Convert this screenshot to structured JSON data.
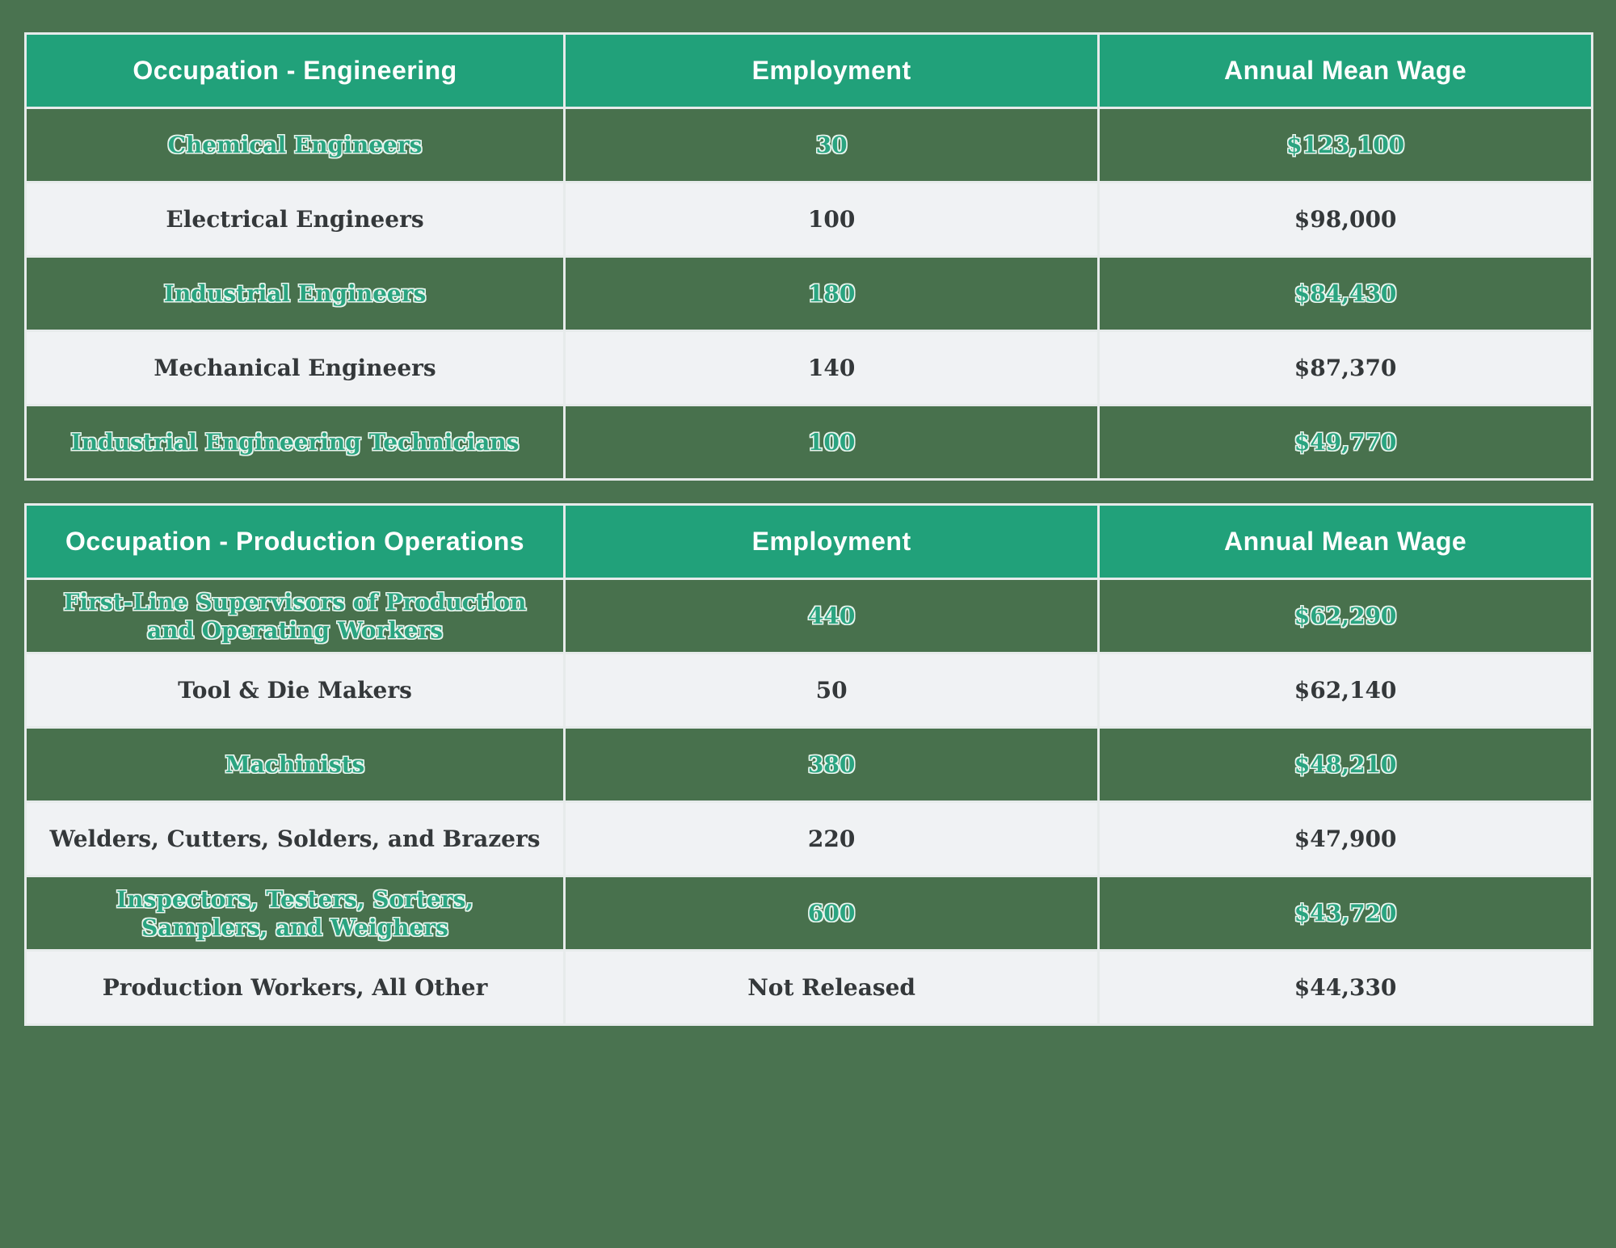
{
  "colors": {
    "page_background": "#4A7350",
    "header_background": "#21A17A",
    "header_text": "#FFFFFF",
    "dark_row_background": "#48714D",
    "dark_row_text": "#2AA480",
    "dark_row_text_outline": "#E9F5EE",
    "light_row_background": "#F0F2F4",
    "light_row_text": "#34383A",
    "cell_border": "#E7EBEB"
  },
  "chart_data": [
    {
      "type": "table",
      "title": "Occupation - Engineering",
      "columns": [
        "Occupation - Engineering",
        "Employment",
        "Annual Mean Wage"
      ],
      "rows": [
        {
          "occupation": "Chemical Engineers",
          "employment": "30",
          "wage": "$123,100"
        },
        {
          "occupation": "Electrical Engineers",
          "employment": "100",
          "wage": "$98,000"
        },
        {
          "occupation": "Industrial Engineers",
          "employment": "180",
          "wage": "$84,430"
        },
        {
          "occupation": "Mechanical Engineers",
          "employment": "140",
          "wage": "$87,370"
        },
        {
          "occupation": "Industrial Engineering Technicians",
          "employment": "100",
          "wage": "$49,770"
        }
      ]
    },
    {
      "type": "table",
      "title": "Occupation - Production Operations",
      "columns": [
        "Occupation - Production Operations",
        "Employment",
        "Annual Mean Wage"
      ],
      "rows": [
        {
          "occupation": "First-Line Supervisors of Production\nand Operating Workers",
          "employment": "440",
          "wage": "$62,290"
        },
        {
          "occupation": "Tool & Die Makers",
          "employment": "50",
          "wage": "$62,140"
        },
        {
          "occupation": "Machinists",
          "employment": "380",
          "wage": "$48,210"
        },
        {
          "occupation": "Welders, Cutters, Solders, and Brazers",
          "employment": "220",
          "wage": "$47,900"
        },
        {
          "occupation": "Inspectors, Testers, Sorters,\nSamplers, and Weighers",
          "employment": "600",
          "wage": "$43,720"
        },
        {
          "occupation": "Production Workers, All Other",
          "employment": "Not Released",
          "wage": "$44,330"
        }
      ]
    }
  ]
}
